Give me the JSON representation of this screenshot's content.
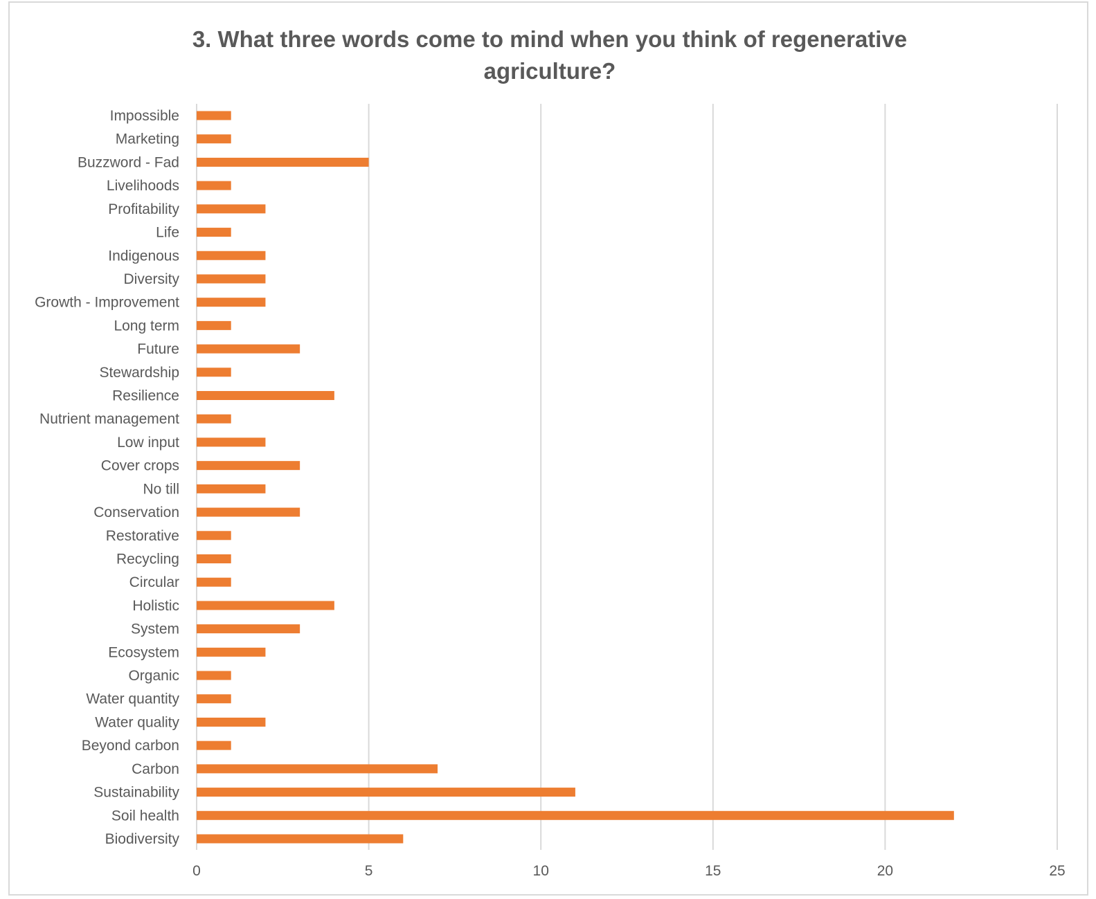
{
  "chart_data": {
    "type": "bar",
    "orientation": "horizontal",
    "title": "3. What three words come to mind when you think of regenerative agriculture?",
    "xlabel": "",
    "ylabel": "",
    "xlim": [
      0,
      25
    ],
    "xticks": [
      0,
      5,
      10,
      15,
      20,
      25
    ],
    "grid": "vertical",
    "legend": "none",
    "bar_color": "#ED7D31",
    "categories": [
      "Impossible",
      "Marketing",
      "Buzzword - Fad",
      "Livelihoods",
      "Profitability",
      "Life",
      "Indigenous",
      "Diversity",
      "Growth - Improvement",
      "Long term",
      "Future",
      "Stewardship",
      "Resilience",
      "Nutrient management",
      "Low input",
      "Cover crops",
      "No till",
      "Conservation",
      "Restorative",
      "Recycling",
      "Circular",
      "Holistic",
      "System",
      "Ecosystem",
      "Organic",
      "Water quantity",
      "Water quality",
      "Beyond carbon",
      "Carbon",
      "Sustainability",
      "Soil health",
      "Biodiversity"
    ],
    "values": [
      1,
      1,
      5,
      1,
      2,
      1,
      2,
      2,
      2,
      1,
      3,
      1,
      4,
      1,
      2,
      3,
      2,
      3,
      1,
      1,
      1,
      4,
      3,
      2,
      1,
      1,
      2,
      1,
      7,
      11,
      22,
      6
    ]
  }
}
